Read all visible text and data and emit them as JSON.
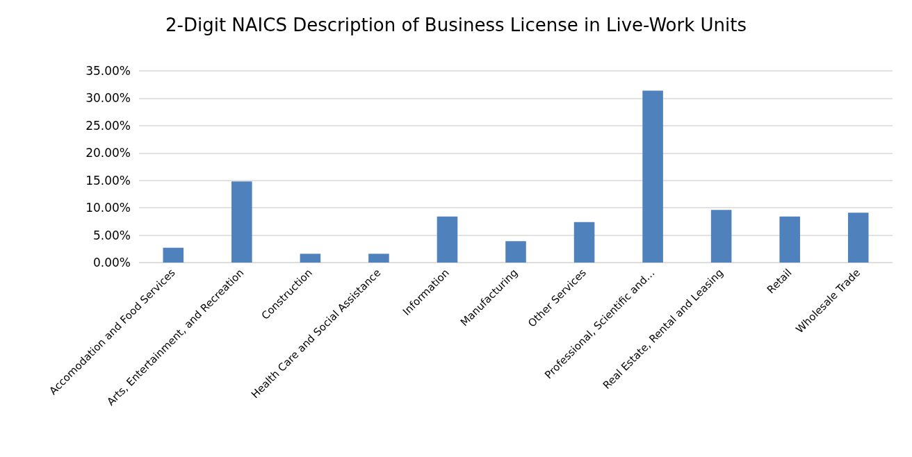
{
  "chart_data": {
    "type": "bar",
    "title": "2-Digit NAICS Description of Business License in Live-Work Units",
    "categories": [
      "Accomodation and Food Services",
      "Arts, Entertainment, and Recreation",
      "Construction",
      "Health Care and Social Assistance",
      "Information",
      "Manufacturing",
      "Other Services",
      "Professional, Scientific and…",
      "Real Estate, Rental and Leasing",
      "Retail",
      "Wholesale Trade"
    ],
    "values": [
      2.7,
      14.8,
      1.6,
      1.6,
      8.4,
      3.9,
      7.4,
      31.4,
      9.6,
      8.4,
      9.1
    ],
    "color": "#4f81bd",
    "ylim": [
      0,
      35
    ],
    "yticks": [
      {
        "value": 0,
        "label": "0.00%"
      },
      {
        "value": 5,
        "label": "5.00%"
      },
      {
        "value": 10,
        "label": "10.00%"
      },
      {
        "value": 15,
        "label": "15.00%"
      },
      {
        "value": 20,
        "label": "20.00%"
      },
      {
        "value": 25,
        "label": "25.00%"
      },
      {
        "value": 30,
        "label": "30.00%"
      },
      {
        "value": 35,
        "label": "35.00%"
      }
    ],
    "grid": "y"
  }
}
